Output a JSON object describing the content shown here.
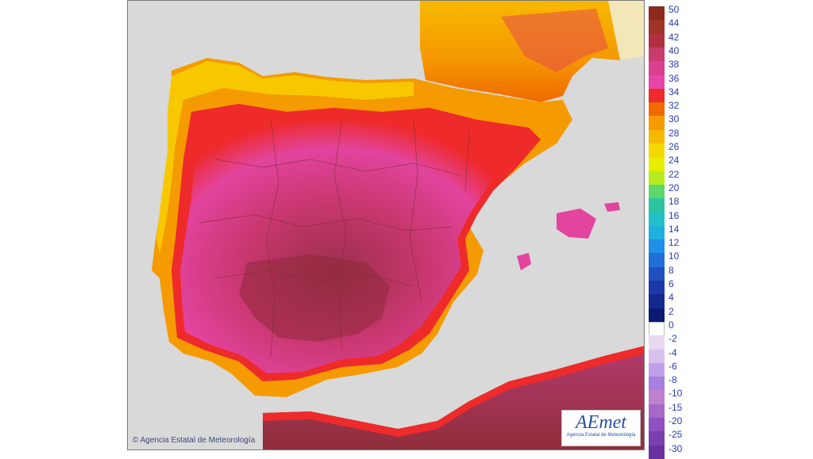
{
  "map": {
    "copyright": "© Agencia Estatal de Meteorología",
    "logo_text": "AEmet",
    "logo_subtitle": "Agencia Estatal de Meteorología",
    "sea_color": "#d9d9d9",
    "border_color": "#7a3030"
  },
  "legend": {
    "ticks": [
      "50",
      "44",
      "42",
      "40",
      "38",
      "36",
      "34",
      "32",
      "30",
      "28",
      "26",
      "24",
      "22",
      "20",
      "18",
      "16",
      "14",
      "12",
      "10",
      "8",
      "6",
      "4",
      "2",
      "0",
      "-2",
      "-4",
      "-6",
      "-8",
      "-10",
      "-15",
      "-20",
      "-25",
      "-30"
    ],
    "colors": [
      "#8b2a1a",
      "#9e3528",
      "#b0303f",
      "#c73c6b",
      "#d9408f",
      "#e646a6",
      "#ee2a2a",
      "#f06a00",
      "#f59a00",
      "#f7b800",
      "#f5d800",
      "#e8ec00",
      "#b8ea20",
      "#5ed86a",
      "#2ec4a0",
      "#20c0c8",
      "#20b0e0",
      "#2090e8",
      "#2070d8",
      "#2050c0",
      "#1a38a8",
      "#142890",
      "#0a1a70",
      "#ffffff",
      "#e8d8f0",
      "#d8c0ec",
      "#c0a0e8",
      "#a880e0",
      "#c080d0",
      "#a868c8",
      "#9050c0",
      "#7a40b0",
      "#6a30a0"
    ]
  }
}
